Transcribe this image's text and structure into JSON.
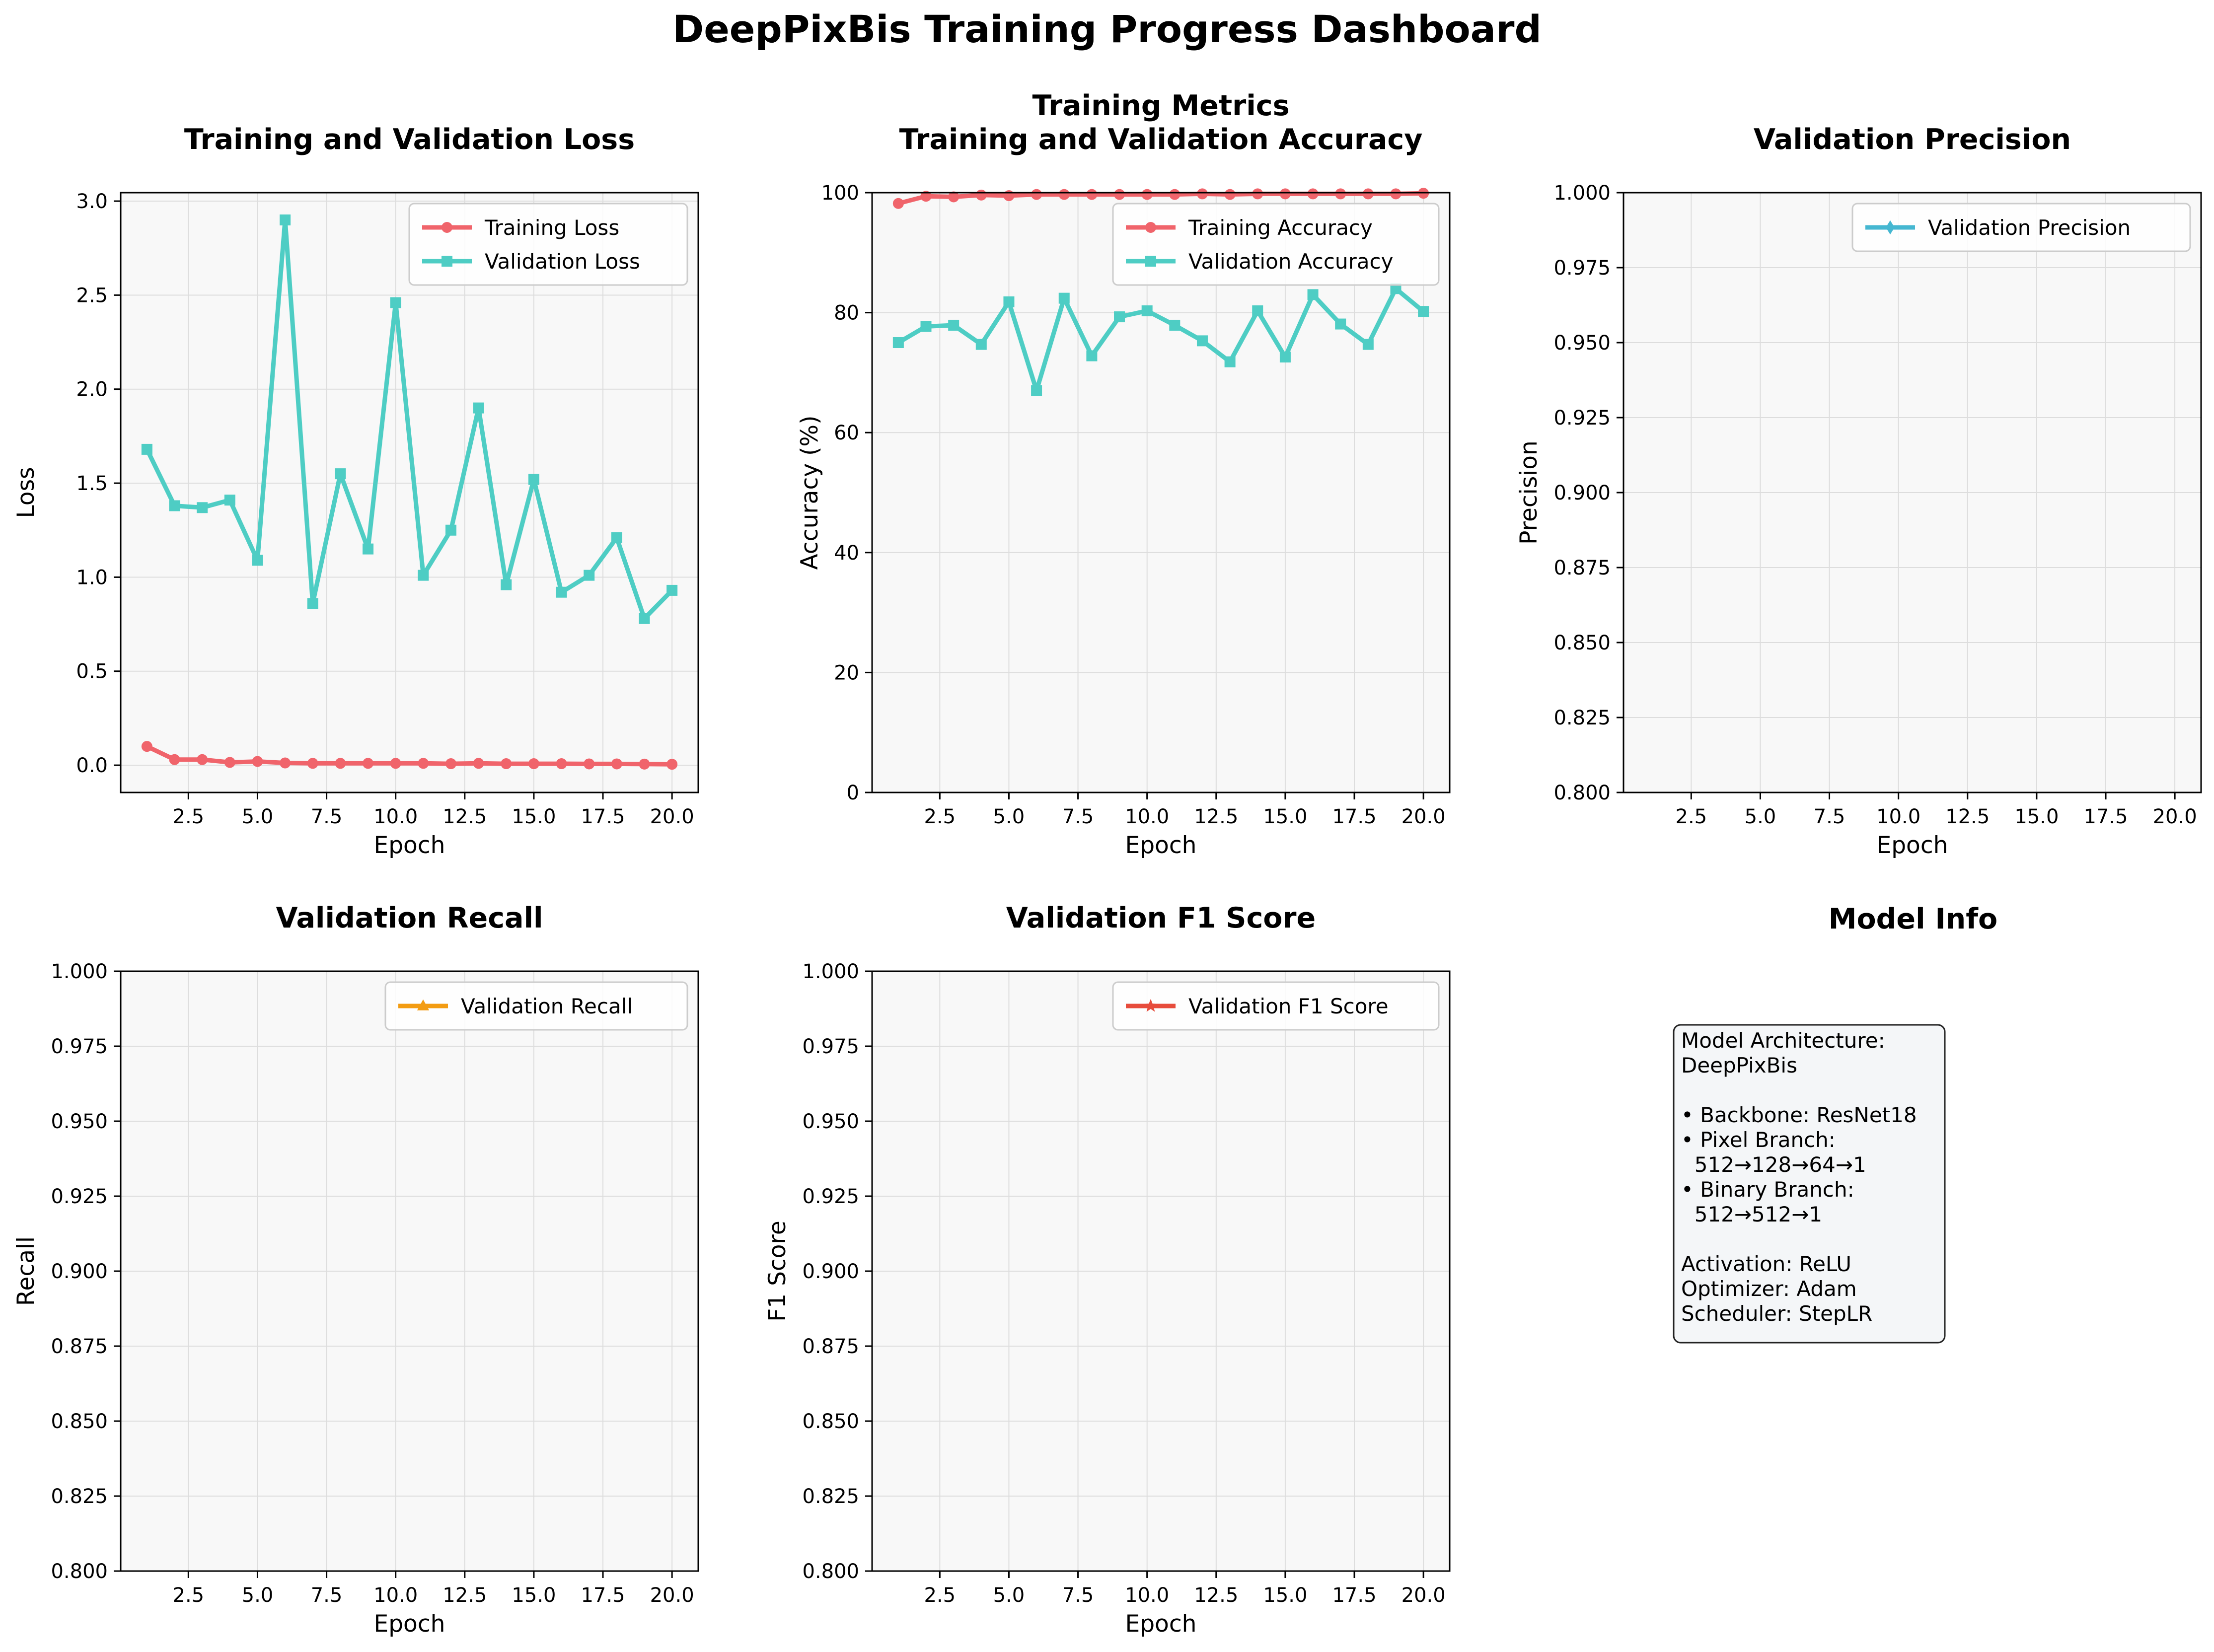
{
  "dashboard": {
    "title": "DeepPixBis Training Progress Dashboard"
  },
  "colors": {
    "training": "#f0646b",
    "validation": "#4ecdc4",
    "precision": "#45b7d1",
    "recall": "#f39c12",
    "f1": "#e74c3c",
    "plot_bg": "#f8f8f8",
    "grid": "#dddddd",
    "infobox_bg": "#f4f6f8"
  },
  "chart_data": [
    {
      "id": "loss",
      "type": "line",
      "title": "Training and Validation Loss",
      "xlabel": "Epoch",
      "ylabel": "Loss",
      "xlim": [
        0.05,
        20.95
      ],
      "ylim": [
        -0.145,
        3.045
      ],
      "xticks": [
        2.5,
        5.0,
        7.5,
        10.0,
        12.5,
        15.0,
        17.5,
        20.0
      ],
      "xtick_labels": [
        "2.5",
        "5.0",
        "7.5",
        "10.0",
        "12.5",
        "15.0",
        "17.5",
        "20.0"
      ],
      "yticks": [
        0.0,
        0.5,
        1.0,
        1.5,
        2.0,
        2.5,
        3.0
      ],
      "ytick_labels": [
        "0.0",
        "0.5",
        "1.0",
        "1.5",
        "2.0",
        "2.5",
        "3.0"
      ],
      "grid": true,
      "legend": "upper right",
      "x": [
        1,
        2,
        3,
        4,
        5,
        6,
        7,
        8,
        9,
        10,
        11,
        12,
        13,
        14,
        15,
        16,
        17,
        18,
        19,
        20
      ],
      "series": [
        {
          "name": "Training Loss",
          "color": "#f0646b",
          "marker": "circle",
          "values": [
            0.1,
            0.03,
            0.03,
            0.015,
            0.02,
            0.012,
            0.01,
            0.01,
            0.01,
            0.01,
            0.01,
            0.008,
            0.01,
            0.008,
            0.008,
            0.008,
            0.007,
            0.007,
            0.006,
            0.005
          ]
        },
        {
          "name": "Validation Loss",
          "color": "#4ecdc4",
          "marker": "square",
          "values": [
            1.68,
            1.38,
            1.37,
            1.41,
            1.09,
            2.9,
            0.86,
            1.55,
            1.15,
            2.46,
            1.01,
            1.25,
            1.9,
            0.96,
            1.52,
            0.92,
            1.01,
            1.21,
            0.78,
            0.93
          ]
        }
      ]
    },
    {
      "id": "accuracy",
      "type": "line",
      "title": "Training Metrics",
      "subtitle": "Training and Validation Accuracy",
      "xlabel": "Epoch",
      "ylabel": "Accuracy (%)",
      "xlim": [
        0.05,
        20.95
      ],
      "ylim": [
        0,
        100
      ],
      "xticks": [
        2.5,
        5.0,
        7.5,
        10.0,
        12.5,
        15.0,
        17.5,
        20.0
      ],
      "xtick_labels": [
        "2.5",
        "5.0",
        "7.5",
        "10.0",
        "12.5",
        "15.0",
        "17.5",
        "20.0"
      ],
      "yticks": [
        0,
        20,
        40,
        60,
        80,
        100
      ],
      "ytick_labels": [
        "0",
        "20",
        "40",
        "60",
        "80",
        "100"
      ],
      "grid": true,
      "legend": "upper right",
      "x": [
        1,
        2,
        3,
        4,
        5,
        6,
        7,
        8,
        9,
        10,
        11,
        12,
        13,
        14,
        15,
        16,
        17,
        18,
        19,
        20
      ],
      "series": [
        {
          "name": "Training Accuracy",
          "color": "#f0646b",
          "marker": "circle",
          "values": [
            98.2,
            99.4,
            99.3,
            99.6,
            99.5,
            99.7,
            99.7,
            99.7,
            99.7,
            99.7,
            99.7,
            99.8,
            99.7,
            99.8,
            99.8,
            99.8,
            99.8,
            99.8,
            99.8,
            99.9
          ]
        },
        {
          "name": "Validation Accuracy",
          "color": "#4ecdc4",
          "marker": "square",
          "values": [
            75.0,
            77.7,
            77.9,
            74.7,
            81.8,
            67.0,
            82.4,
            72.8,
            79.3,
            80.3,
            77.9,
            75.3,
            71.8,
            80.3,
            72.6,
            83.0,
            78.1,
            74.7,
            84.0,
            80.2
          ]
        }
      ]
    },
    {
      "id": "precision",
      "type": "line",
      "title": "Validation Precision",
      "xlabel": "Epoch",
      "ylabel": "Precision",
      "xlim": [
        0.05,
        20.95
      ],
      "ylim": [
        0.8,
        1.0
      ],
      "xticks": [
        2.5,
        5.0,
        7.5,
        10.0,
        12.5,
        15.0,
        17.5,
        20.0
      ],
      "xtick_labels": [
        "2.5",
        "5.0",
        "7.5",
        "10.0",
        "12.5",
        "15.0",
        "17.5",
        "20.0"
      ],
      "yticks": [
        0.8,
        0.825,
        0.85,
        0.875,
        0.9,
        0.925,
        0.95,
        0.975,
        1.0
      ],
      "ytick_labels": [
        "0.800",
        "0.825",
        "0.850",
        "0.875",
        "0.900",
        "0.925",
        "0.950",
        "0.975",
        "1.000"
      ],
      "grid": true,
      "legend": "upper right",
      "x": [],
      "series": [
        {
          "name": "Validation Precision",
          "color": "#45b7d1",
          "marker": "diamond",
          "values": []
        }
      ]
    },
    {
      "id": "recall",
      "type": "line",
      "title": "Validation Recall",
      "xlabel": "Epoch",
      "ylabel": "Recall",
      "xlim": [
        0.05,
        20.95
      ],
      "ylim": [
        0.8,
        1.0
      ],
      "xticks": [
        2.5,
        5.0,
        7.5,
        10.0,
        12.5,
        15.0,
        17.5,
        20.0
      ],
      "xtick_labels": [
        "2.5",
        "5.0",
        "7.5",
        "10.0",
        "12.5",
        "15.0",
        "17.5",
        "20.0"
      ],
      "yticks": [
        0.8,
        0.825,
        0.85,
        0.875,
        0.9,
        0.925,
        0.95,
        0.975,
        1.0
      ],
      "ytick_labels": [
        "0.800",
        "0.825",
        "0.850",
        "0.875",
        "0.900",
        "0.925",
        "0.950",
        "0.975",
        "1.000"
      ],
      "grid": true,
      "legend": "upper right",
      "x": [],
      "series": [
        {
          "name": "Validation Recall",
          "color": "#f39c12",
          "marker": "triangle",
          "values": []
        }
      ]
    },
    {
      "id": "f1",
      "type": "line",
      "title": "Validation F1 Score",
      "xlabel": "Epoch",
      "ylabel": "F1 Score",
      "xlim": [
        0.05,
        20.95
      ],
      "ylim": [
        0.8,
        1.0
      ],
      "xticks": [
        2.5,
        5.0,
        7.5,
        10.0,
        12.5,
        15.0,
        17.5,
        20.0
      ],
      "xtick_labels": [
        "2.5",
        "5.0",
        "7.5",
        "10.0",
        "12.5",
        "15.0",
        "17.5",
        "20.0"
      ],
      "yticks": [
        0.8,
        0.825,
        0.85,
        0.875,
        0.9,
        0.925,
        0.95,
        0.975,
        1.0
      ],
      "ytick_labels": [
        "0.800",
        "0.825",
        "0.850",
        "0.875",
        "0.900",
        "0.925",
        "0.950",
        "0.975",
        "1.000"
      ],
      "grid": true,
      "legend": "upper right",
      "x": [],
      "series": [
        {
          "name": "Validation F1 Score",
          "color": "#e74c3c",
          "marker": "star",
          "values": []
        }
      ]
    }
  ],
  "model_info": {
    "title": "Model Info",
    "lines": [
      "Model Architecture:",
      "DeepPixBis",
      "",
      "• Backbone: ResNet18",
      "• Pixel Branch:",
      "  512→128→64→1",
      "• Binary Branch:",
      "  512→512→1",
      "",
      "Activation: ReLU",
      "Optimizer: Adam",
      "Scheduler: StepLR"
    ]
  }
}
